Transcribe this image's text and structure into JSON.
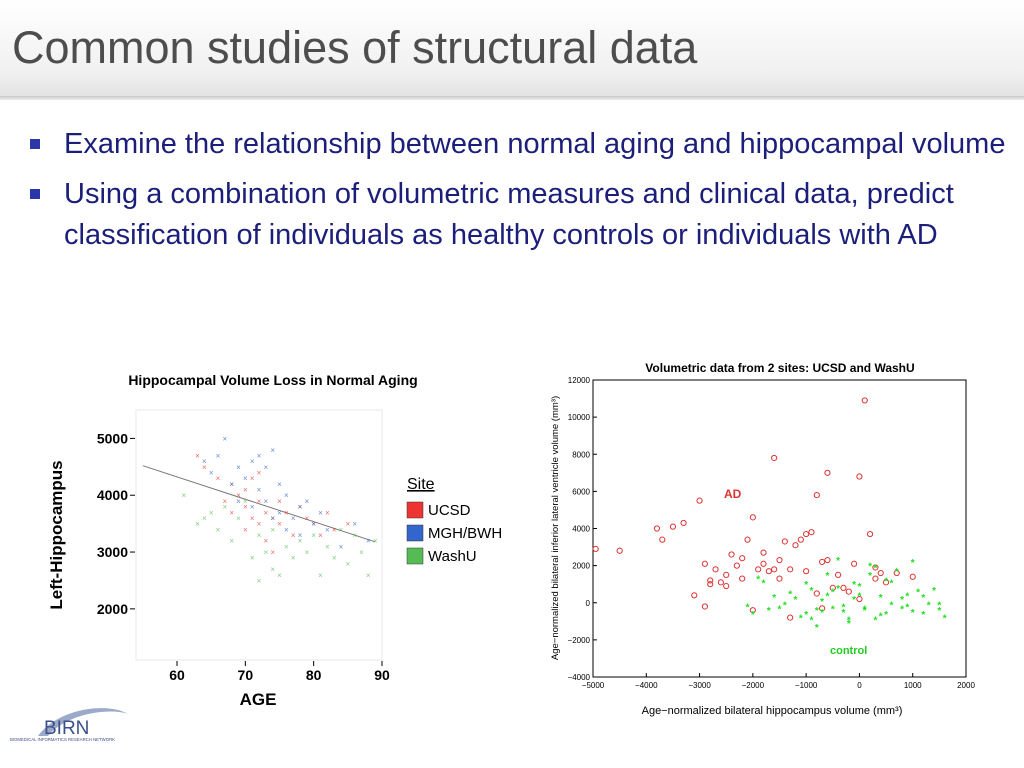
{
  "slide": {
    "title": "Common studies of structural data",
    "bullets": [
      "Examine the relationship between normal aging and hippocampal volume",
      "Using a combination of volumetric measures and clinical data, predict classification of individuals as healthy controls or individuals with AD"
    ]
  },
  "colors": {
    "title": "#4d4d4d",
    "bullet_text": "#1c1f7a",
    "bullet_mark": "#2b37a8",
    "ucsd": "#ee3333",
    "mgh_bwh": "#3366cc",
    "washu": "#55bb55",
    "ad_points": "#dd3333",
    "control_points": "#22dd22"
  },
  "logo": {
    "text": "BIRN",
    "subtext": "BIOMEDICAL INFORMATICS RESEARCH NETWORK"
  },
  "chart_data": [
    {
      "type": "scatter",
      "title": "Hippocampal Volume Loss in Normal Aging",
      "xlabel": "AGE",
      "ylabel": "Left-Hippocampus",
      "xlim": [
        54,
        90
      ],
      "ylim": [
        1100,
        5500
      ],
      "xticks": [
        "60",
        "70",
        "80",
        "90"
      ],
      "yticks": [
        "2000",
        "3000",
        "4000",
        "5000"
      ],
      "grid": false,
      "legend": {
        "title": "Site",
        "placement": "right"
      },
      "trendline": {
        "x": [
          55,
          89
        ],
        "y": [
          4520,
          3180
        ]
      },
      "series": [
        {
          "name": "UCSD",
          "color": "#ee3333",
          "x": [
            63,
            64,
            66,
            67,
            68,
            68,
            69,
            70,
            70,
            70,
            71,
            71,
            72,
            72,
            72,
            73,
            73,
            74,
            74,
            75,
            75,
            76,
            77,
            78,
            79,
            80,
            81,
            82,
            83,
            85
          ],
          "y": [
            4700,
            4500,
            4300,
            3900,
            4200,
            3700,
            4000,
            3400,
            3800,
            4100,
            3600,
            4300,
            3500,
            3900,
            4400,
            3200,
            3700,
            3000,
            3600,
            3500,
            3900,
            3700,
            3300,
            3800,
            3600,
            3500,
            3300,
            3700,
            3400,
            3500
          ]
        },
        {
          "name": "MGH/BWH",
          "color": "#3366cc",
          "x": [
            64,
            65,
            66,
            67,
            68,
            69,
            69,
            70,
            71,
            71,
            72,
            72,
            73,
            73,
            74,
            74,
            75,
            75,
            76,
            76,
            77,
            78,
            78,
            79,
            80,
            81,
            82,
            84,
            86,
            88
          ],
          "y": [
            4600,
            4400,
            4700,
            5000,
            4200,
            3900,
            4500,
            4300,
            3800,
            4600,
            4100,
            4700,
            3900,
            4500,
            3600,
            4800,
            3700,
            4200,
            3400,
            4000,
            3600,
            3800,
            3300,
            3900,
            3500,
            3700,
            3400,
            3100,
            3500,
            3200
          ]
        },
        {
          "name": "WashU",
          "color": "#55bb55",
          "x": [
            61,
            63,
            64,
            65,
            66,
            67,
            68,
            69,
            70,
            71,
            72,
            72,
            73,
            74,
            74,
            75,
            76,
            77,
            78,
            79,
            80,
            81,
            82,
            83,
            84,
            85,
            86,
            87,
            88,
            89
          ],
          "y": [
            4000,
            3500,
            3600,
            3700,
            3400,
            3800,
            3200,
            3600,
            3900,
            2900,
            3300,
            2500,
            3000,
            2700,
            3400,
            2600,
            3100,
            2900,
            3200,
            3000,
            3300,
            2600,
            3100,
            2900,
            3400,
            2800,
            3300,
            3000,
            2600,
            3200
          ]
        }
      ]
    },
    {
      "type": "scatter",
      "title": "Volumetric data from 2 sites: UCSD and WashU",
      "xlabel": "Age−normalized bilateral hippocampus volume (mm³)",
      "ylabel": "Age−normalized bilateral inferior lateral ventricle volume (mm³)",
      "xlim": [
        -5000,
        2000
      ],
      "ylim": [
        -4000,
        12000
      ],
      "xticks": [
        "−5000",
        "−4000",
        "−3000",
        "−2000",
        "−1000",
        "0",
        "1000",
        "2000"
      ],
      "yticks": [
        "−4000",
        "−2000",
        "0",
        "2000",
        "4000",
        "6000",
        "8000",
        "10000",
        "12000"
      ],
      "grid": false,
      "annotations": [
        "AD",
        "control"
      ],
      "series": [
        {
          "name": "AD",
          "marker": "circle",
          "color": "#dd3333",
          "x": [
            -4950,
            -4500,
            -3800,
            -3700,
            -3500,
            -3300,
            -3000,
            -2900,
            -2800,
            -2700,
            -2600,
            -2500,
            -2400,
            -2300,
            -2200,
            -2100,
            -2000,
            -1900,
            -1800,
            -1700,
            -1600,
            -1500,
            -1400,
            -1300,
            -1200,
            -1100,
            -1000,
            -900,
            -800,
            -700,
            -600,
            -500,
            -400,
            -300,
            -200,
            -100,
            0,
            100,
            200,
            300,
            400,
            500,
            700,
            1000,
            -2000,
            -1500,
            -600,
            -700,
            0,
            300,
            -1800,
            -2200,
            -2900,
            -3100,
            -1000,
            -1300,
            -2500,
            -800,
            -2800,
            -1600
          ],
          "y": [
            2900,
            2800,
            4000,
            3400,
            4100,
            4300,
            5500,
            2100,
            1200,
            1800,
            1100,
            900,
            2600,
            2000,
            1300,
            3400,
            4600,
            1800,
            2100,
            1700,
            7800,
            2300,
            3300,
            1800,
            3100,
            3400,
            3700,
            3800,
            5800,
            2200,
            7000,
            800,
            1500,
            800,
            600,
            2100,
            6800,
            10900,
            3700,
            1900,
            1600,
            1100,
            1600,
            1400,
            -400,
            1300,
            2300,
            -300,
            200,
            1300,
            2700,
            2400,
            -200,
            400,
            1700,
            -800,
            1500,
            500,
            1000,
            1800
          ]
        },
        {
          "name": "control",
          "marker": "star",
          "color": "#22dd22",
          "x": [
            -2100,
            -2000,
            -1900,
            -1800,
            -1700,
            -1600,
            -1500,
            -1400,
            -1300,
            -1200,
            -1100,
            -1000,
            -900,
            -800,
            -700,
            -600,
            -500,
            -400,
            -300,
            -200,
            -100,
            0,
            100,
            200,
            300,
            400,
            500,
            600,
            700,
            800,
            900,
            1000,
            1100,
            1200,
            1300,
            1400,
            1500,
            1600,
            -1000,
            -800,
            -600,
            -400,
            -200,
            0,
            200,
            400,
            600,
            800,
            1000,
            -900,
            -500,
            -300,
            100,
            300,
            500,
            900,
            1200,
            1500,
            -700,
            -100
          ],
          "y": [
            -200,
            -600,
            1300,
            1100,
            -400,
            300,
            -300,
            -100,
            500,
            200,
            -800,
            -600,
            700,
            -1300,
            100,
            1500,
            -300,
            2300,
            -500,
            -1100,
            200,
            900,
            -400,
            2000,
            -900,
            300,
            1200,
            -100,
            1700,
            -300,
            -200,
            2200,
            600,
            -600,
            -100,
            700,
            -400,
            -800,
            1000,
            -400,
            400,
            800,
            -900,
            400,
            1500,
            -700,
            1100,
            200,
            -500,
            -900,
            600,
            -200,
            -300,
            1900,
            -600,
            400,
            300,
            -100,
            -500,
            1000
          ]
        }
      ]
    }
  ]
}
